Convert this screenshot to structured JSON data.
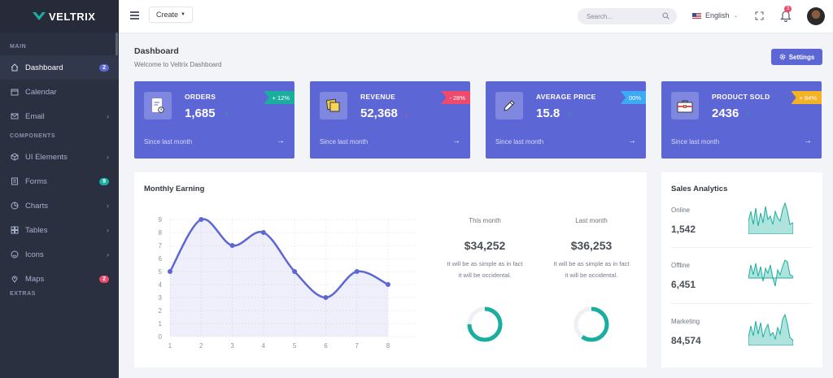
{
  "brand": {
    "name": "VELTRIX"
  },
  "sidebar": {
    "sections": {
      "main": "MAIN",
      "components": "COMPONENTS",
      "extras": "EXTRAS"
    },
    "items": [
      {
        "label": "Dashboard",
        "icon": "home-icon",
        "badge": "2",
        "badge_color": "#5d66d5"
      },
      {
        "label": "Calendar",
        "icon": "calendar-icon"
      },
      {
        "label": "Email",
        "icon": "mail-icon"
      },
      {
        "label": "UI Elements",
        "icon": "cube-icon"
      },
      {
        "label": "Forms",
        "icon": "form-icon",
        "badge": "9",
        "badge_color": "#1aae9f"
      },
      {
        "label": "Charts",
        "icon": "chart-icon"
      },
      {
        "label": "Tables",
        "icon": "table-icon"
      },
      {
        "label": "Icons",
        "icon": "smiley-icon"
      },
      {
        "label": "Maps",
        "icon": "map-pin-icon",
        "badge": "2",
        "badge_color": "#ef4a6b"
      }
    ]
  },
  "topbar": {
    "create_label": "Create",
    "search_placeholder": "Search...",
    "language": "English",
    "notification_count": "3"
  },
  "page": {
    "title": "Dashboard",
    "subtitle": "Welcome to Veltrix Dashboard",
    "settings_label": "Settings"
  },
  "stats": [
    {
      "label": "ORDERS",
      "value": "1,685",
      "trend": "up",
      "ribbon": "+ 12%",
      "ribbon_color": "#1aae9f",
      "footer": "Since last month",
      "icon": "clipboard-icon"
    },
    {
      "label": "REVENUE",
      "value": "52,368",
      "trend": "down",
      "ribbon": "- 28%",
      "ribbon_color": "#ef4a6b",
      "footer": "Since last month",
      "icon": "sticky-notes-icon"
    },
    {
      "label": "AVERAGE PRICE",
      "value": "15.8",
      "trend": "up",
      "ribbon": "00%",
      "ribbon_color": "#3daaf5",
      "footer": "Since last month",
      "icon": "pen-icon"
    },
    {
      "label": "PRODUCT SOLD",
      "value": "2436",
      "trend": "up",
      "ribbon": "+ 84%",
      "ribbon_color": "#f5b225",
      "footer": "Since last month",
      "icon": "briefcase-icon"
    }
  ],
  "earning": {
    "title": "Monthly Earning",
    "this_month": {
      "label": "This month",
      "value": "$34,252",
      "note_line1": "It will be as simple as in fact",
      "note_line2": "it will be occidental.",
      "progress": 0.75
    },
    "last_month": {
      "label": "Last month",
      "value": "$36,253",
      "note_line1": "It will be as simple as in fact",
      "note_line2": "it will be occidental.",
      "progress": 0.6
    }
  },
  "chart_data": {
    "type": "area",
    "x": [
      1,
      2,
      3,
      4,
      5,
      6,
      7,
      8
    ],
    "series": [
      {
        "values": [
          5,
          9,
          7,
          8,
          5,
          3,
          5,
          4
        ],
        "color": "#5d66d5"
      }
    ],
    "ylim": [
      0,
      9
    ],
    "yticks": [
      0,
      1,
      2,
      3,
      4,
      5,
      6,
      7,
      8,
      9
    ],
    "grid": true
  },
  "sales": {
    "title": "Sales Analytics",
    "rows": [
      {
        "label": "Online",
        "value": "1,542"
      },
      {
        "label": "Offline",
        "value": "6,451"
      },
      {
        "label": "Marketing",
        "value": "84,574"
      }
    ],
    "spark_color": "#1aae9f"
  }
}
